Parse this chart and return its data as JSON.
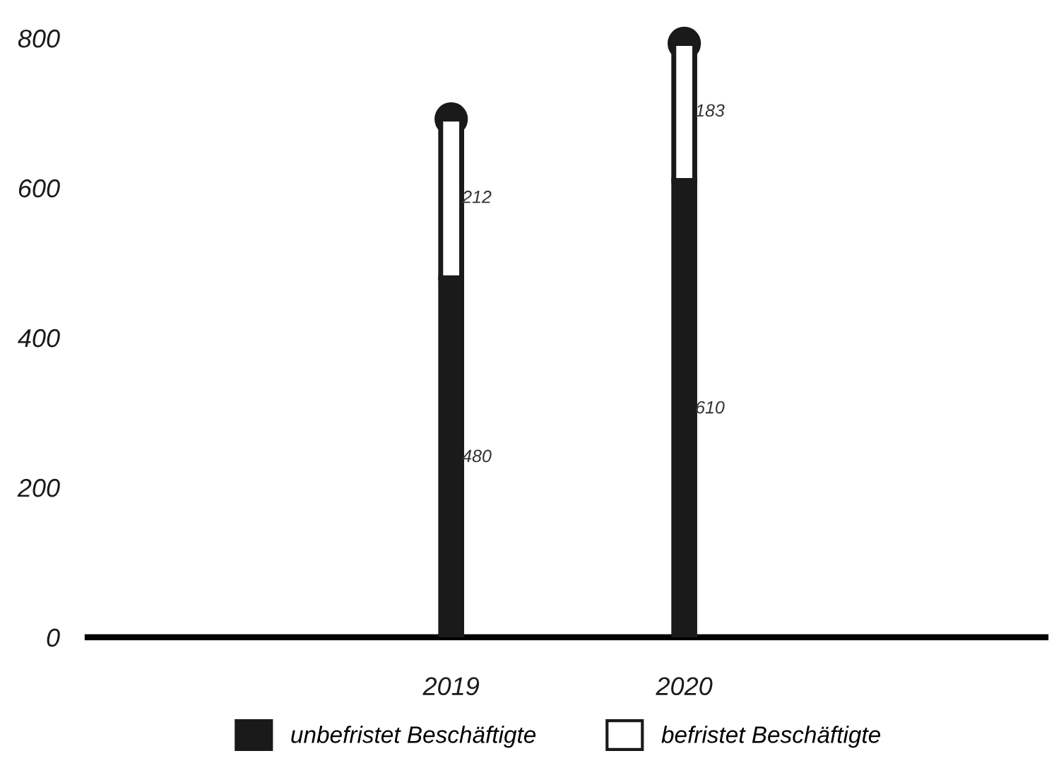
{
  "chart_data": {
    "type": "bar",
    "stacked": true,
    "categories": [
      "2019",
      "2020"
    ],
    "series": [
      {
        "name": "unbefristet Beschäftigte",
        "color": "#1a1a1a",
        "values": [
          480,
          610
        ]
      },
      {
        "name": "befristet Beschäftigte",
        "color": "#ffffff",
        "values": [
          212,
          183
        ]
      }
    ],
    "ylim": [
      0,
      800
    ],
    "yticks": [
      0,
      200,
      400,
      600,
      800
    ],
    "data_labels": true,
    "legend": "bottom",
    "grid": false
  }
}
